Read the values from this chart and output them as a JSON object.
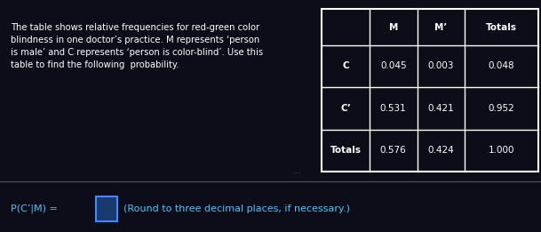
{
  "bg_color": "#0d0d1a",
  "text_color": "#ffffff",
  "blue_text": "#4fc3f7",
  "description": "The table shows relative frequencies for red-green color\nblindness in one doctor’s practice. M represents ‘person\nis male’ and C represents ‘person is color-blind’. Use this\ntable to find the following  probability.",
  "prob_label": "P(C’|M) = ",
  "prob_hint": "(Round to three decimal places, if necessary.)",
  "table": {
    "headers": [
      "",
      "M",
      "M’",
      "Totals"
    ],
    "rows": [
      [
        "C",
        "0.045",
        "0.003",
        "0.048"
      ],
      [
        "C’",
        "0.531",
        "0.421",
        "0.952"
      ],
      [
        "Totals",
        "0.576",
        "0.424",
        "1.000"
      ]
    ]
  },
  "divider_color": "#555555",
  "table_border_color": "#ffffff",
  "input_box_color": "#1a3a6e",
  "input_box_border": "#4488ff"
}
